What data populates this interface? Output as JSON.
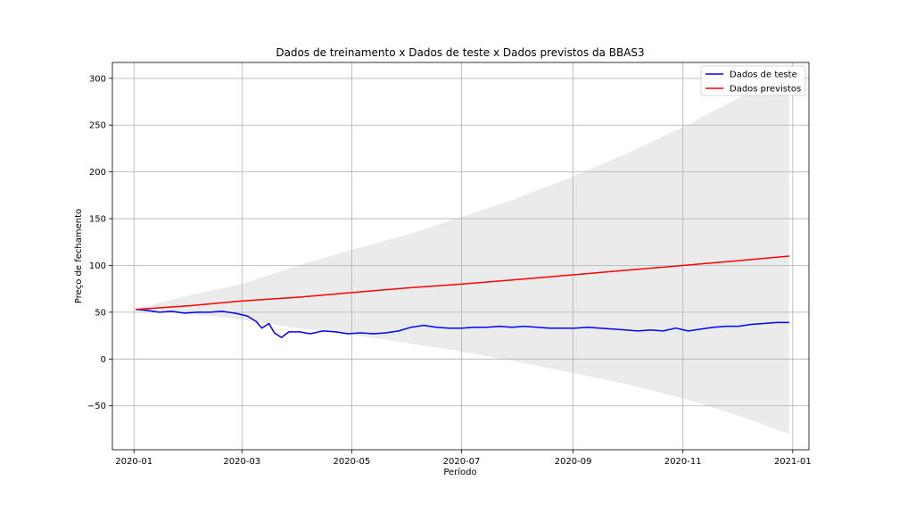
{
  "chart_data": {
    "type": "line",
    "title": "Dados de treinamento x Dados de teste x Dados previstos da BBAS3",
    "xlabel": "Período",
    "ylabel": "Preço de fechamento",
    "xlim": [
      "2019-12-20",
      "2021-01-10"
    ],
    "ylim": [
      -97,
      317
    ],
    "x_ticks": [
      "2020-01-01",
      "2020-03-01",
      "2020-05-01",
      "2020-07-01",
      "2020-09-01",
      "2020-11-01",
      "2021-01-01"
    ],
    "x_tick_labels": [
      "2020-01",
      "2020-03",
      "2020-05",
      "2020-07",
      "2020-09",
      "2020-11",
      "2021-01"
    ],
    "y_ticks": [
      -50,
      0,
      50,
      100,
      150,
      200,
      250,
      300
    ],
    "y_tick_labels": [
      "−50",
      "0",
      "50",
      "100",
      "150",
      "200",
      "250",
      "300"
    ],
    "grid": true,
    "legend": "top-right",
    "colors": {
      "test": "#0000ff",
      "forecast": "#ff0000",
      "band": "#ebebeb"
    },
    "series": [
      {
        "name": "Dados de teste",
        "color": "#0000ff",
        "points": [
          [
            "2020-01-02",
            53
          ],
          [
            "2020-01-08",
            52
          ],
          [
            "2020-01-15",
            50
          ],
          [
            "2020-01-22",
            51
          ],
          [
            "2020-01-29",
            49
          ],
          [
            "2020-02-05",
            50
          ],
          [
            "2020-02-12",
            50
          ],
          [
            "2020-02-19",
            51
          ],
          [
            "2020-02-26",
            49
          ],
          [
            "2020-03-04",
            46
          ],
          [
            "2020-03-09",
            40
          ],
          [
            "2020-03-12",
            33
          ],
          [
            "2020-03-16",
            38
          ],
          [
            "2020-03-19",
            28
          ],
          [
            "2020-03-23",
            23
          ],
          [
            "2020-03-27",
            29
          ],
          [
            "2020-04-02",
            29
          ],
          [
            "2020-04-08",
            27
          ],
          [
            "2020-04-15",
            30
          ],
          [
            "2020-04-22",
            29
          ],
          [
            "2020-04-29",
            27
          ],
          [
            "2020-05-06",
            28
          ],
          [
            "2020-05-13",
            27
          ],
          [
            "2020-05-20",
            28
          ],
          [
            "2020-05-27",
            30
          ],
          [
            "2020-06-03",
            34
          ],
          [
            "2020-06-10",
            36
          ],
          [
            "2020-06-17",
            34
          ],
          [
            "2020-06-24",
            33
          ],
          [
            "2020-07-01",
            33
          ],
          [
            "2020-07-08",
            34
          ],
          [
            "2020-07-15",
            34
          ],
          [
            "2020-07-22",
            35
          ],
          [
            "2020-07-29",
            34
          ],
          [
            "2020-08-05",
            35
          ],
          [
            "2020-08-12",
            34
          ],
          [
            "2020-08-19",
            33
          ],
          [
            "2020-08-26",
            33
          ],
          [
            "2020-09-02",
            33
          ],
          [
            "2020-09-09",
            34
          ],
          [
            "2020-09-16",
            33
          ],
          [
            "2020-09-23",
            32
          ],
          [
            "2020-09-30",
            31
          ],
          [
            "2020-10-07",
            30
          ],
          [
            "2020-10-14",
            31
          ],
          [
            "2020-10-21",
            30
          ],
          [
            "2020-10-28",
            33
          ],
          [
            "2020-11-04",
            30
          ],
          [
            "2020-11-11",
            32
          ],
          [
            "2020-11-18",
            34
          ],
          [
            "2020-11-25",
            35
          ],
          [
            "2020-12-02",
            35
          ],
          [
            "2020-12-09",
            37
          ],
          [
            "2020-12-16",
            38
          ],
          [
            "2020-12-23",
            39
          ],
          [
            "2020-12-30",
            39
          ]
        ]
      },
      {
        "name": "Dados previstos",
        "color": "#ff0000",
        "points": [
          [
            "2020-01-02",
            53
          ],
          [
            "2020-02-01",
            57
          ],
          [
            "2020-03-01",
            62
          ],
          [
            "2020-04-01",
            66
          ],
          [
            "2020-05-01",
            71
          ],
          [
            "2020-06-01",
            76
          ],
          [
            "2020-07-01",
            80
          ],
          [
            "2020-08-01",
            85
          ],
          [
            "2020-09-01",
            90
          ],
          [
            "2020-10-01",
            95
          ],
          [
            "2020-11-01",
            100
          ],
          [
            "2020-12-01",
            105
          ],
          [
            "2020-12-30",
            110
          ]
        ]
      }
    ],
    "band": {
      "points": [
        [
          "2020-01-02",
          54,
          52
        ],
        [
          "2020-02-01",
          68,
          48
        ],
        [
          "2020-03-01",
          80,
          42
        ],
        [
          "2020-04-01",
          100,
          33
        ],
        [
          "2020-05-01",
          117,
          26
        ],
        [
          "2020-06-01",
          133,
          17
        ],
        [
          "2020-07-01",
          152,
          8
        ],
        [
          "2020-08-01",
          172,
          -3
        ],
        [
          "2020-09-01",
          195,
          -15
        ],
        [
          "2020-10-01",
          220,
          -27
        ],
        [
          "2020-11-01",
          248,
          -42
        ],
        [
          "2020-12-01",
          278,
          -60
        ],
        [
          "2020-12-30",
          312,
          -80
        ]
      ]
    }
  }
}
